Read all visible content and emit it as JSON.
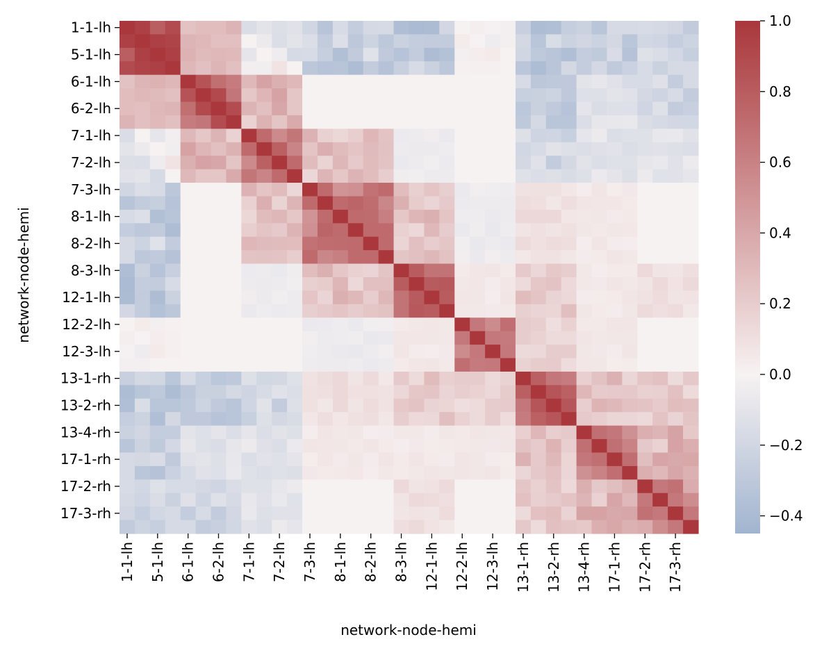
{
  "chart_data": {
    "type": "heatmap",
    "xlabel": "network-node-hemi",
    "ylabel": "network-node-hemi",
    "row_labels": [
      "1-1-lh",
      "5-1-lh",
      "6-1-lh",
      "6-2-lh",
      "7-1-lh",
      "7-2-lh",
      "7-3-lh",
      "8-1-lh",
      "8-2-lh",
      "8-3-lh",
      "12-1-lh",
      "12-2-lh",
      "12-3-lh",
      "13-1-rh",
      "13-2-rh",
      "13-4-rh",
      "17-1-rh",
      "17-2-rh",
      "17-3-rh"
    ],
    "col_labels": [
      "1-1-lh",
      "5-1-lh",
      "6-1-lh",
      "6-2-lh",
      "7-1-lh",
      "7-2-lh",
      "7-3-lh",
      "8-1-lh",
      "8-2-lh",
      "8-3-lh",
      "12-1-lh",
      "12-2-lh",
      "12-3-lh",
      "13-1-rh",
      "13-2-rh",
      "13-4-rh",
      "17-1-rh",
      "17-2-rh",
      "17-3-rh"
    ],
    "cells_per_label": 2,
    "block_sizes": [
      4,
      4,
      4,
      6,
      4,
      4,
      4,
      4,
      4
    ],
    "block_stats": [
      [
        [
          0.85,
          0.35
        ],
        [
          0.3,
          -0.1
        ],
        [
          -0.05,
          -0.3
        ],
        [
          -0.25,
          -0.3
        ],
        [
          -0.3,
          -0.3
        ],
        [
          0.0,
          0.1
        ],
        [
          -0.28,
          -0.28
        ],
        [
          -0.25,
          -0.25
        ],
        [
          -0.2,
          -0.2
        ]
      ],
      [
        [
          0.3,
          0.3
        ],
        [
          0.75,
          0.35
        ],
        [
          0.3,
          0.3
        ],
        [
          0.0,
          0.0
        ],
        [
          0.0,
          0.0
        ],
        [
          0.0,
          0.0
        ],
        [
          -0.25,
          -0.25
        ],
        [
          -0.12,
          -0.12
        ],
        [
          -0.2,
          -0.2
        ]
      ],
      [
        [
          -0.05,
          -0.3
        ],
        [
          0.3,
          0.3
        ],
        [
          0.62,
          0.4
        ],
        [
          0.25,
          0.25
        ],
        [
          -0.05,
          -0.05
        ],
        [
          0.0,
          0.0
        ],
        [
          -0.2,
          -0.2
        ],
        [
          -0.1,
          -0.1
        ],
        [
          -0.1,
          -0.1
        ]
      ],
      [
        [
          -0.25,
          -0.3
        ],
        [
          0.0,
          0.0
        ],
        [
          0.25,
          0.25
        ],
        [
          0.62,
          0.35
        ],
        [
          0.25,
          0.25
        ],
        [
          -0.05,
          -0.05
        ],
        [
          0.1,
          0.1
        ],
        [
          0.05,
          0.05
        ],
        [
          0.0,
          0.0
        ]
      ],
      [
        [
          -0.3,
          -0.3
        ],
        [
          0.0,
          0.0
        ],
        [
          -0.05,
          -0.05
        ],
        [
          0.25,
          0.25
        ],
        [
          0.7,
          0.4
        ],
        [
          0.05,
          0.05
        ],
        [
          0.2,
          0.2
        ],
        [
          0.05,
          0.05
        ],
        [
          0.1,
          0.1
        ]
      ],
      [
        [
          0.0,
          0.1
        ],
        [
          0.0,
          0.0
        ],
        [
          0.0,
          0.0
        ],
        [
          -0.05,
          -0.05
        ],
        [
          0.05,
          0.05
        ],
        [
          0.55,
          0.35
        ],
        [
          0.15,
          0.15
        ],
        [
          0.05,
          0.05
        ],
        [
          0.0,
          0.0
        ]
      ],
      [
        [
          -0.28,
          -0.28
        ],
        [
          -0.25,
          -0.25
        ],
        [
          -0.2,
          -0.2
        ],
        [
          0.1,
          0.1
        ],
        [
          0.2,
          0.2
        ],
        [
          0.15,
          0.15
        ],
        [
          0.68,
          0.4
        ],
        [
          0.25,
          0.25
        ],
        [
          0.2,
          0.2
        ]
      ],
      [
        [
          -0.25,
          -0.25
        ],
        [
          -0.12,
          -0.12
        ],
        [
          -0.1,
          -0.1
        ],
        [
          0.05,
          0.05
        ],
        [
          0.05,
          0.05
        ],
        [
          0.05,
          0.05
        ],
        [
          0.25,
          0.25
        ],
        [
          0.6,
          0.4
        ],
        [
          0.3,
          0.3
        ]
      ],
      [
        [
          -0.2,
          -0.2
        ],
        [
          -0.2,
          -0.2
        ],
        [
          -0.1,
          -0.1
        ],
        [
          0.0,
          0.0
        ],
        [
          0.1,
          0.1
        ],
        [
          0.0,
          0.0
        ],
        [
          0.2,
          0.2
        ],
        [
          0.3,
          0.3
        ],
        [
          0.55,
          0.4
        ]
      ]
    ],
    "colorbar_ticks": [
      "1.0",
      "0.8",
      "0.6",
      "0.4",
      "0.2",
      "0.0",
      "−0.2",
      "−0.4"
    ],
    "colorbar_values": [
      1.0,
      0.8,
      0.6,
      0.4,
      0.2,
      0.0,
      -0.2,
      -0.4
    ],
    "vmin": -0.45,
    "vmax": 1.0,
    "colormap": "vlag",
    "colors": {
      "low": "#a1b4cf",
      "mid": "#f7f2f2",
      "high": "#a9373b"
    }
  }
}
